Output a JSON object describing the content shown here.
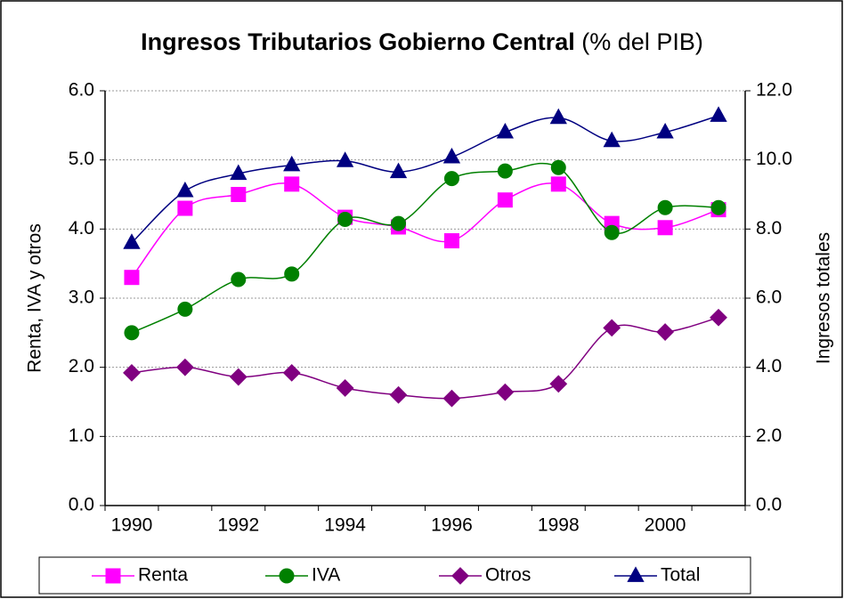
{
  "chart_data": {
    "type": "line",
    "title": "Ingresos Tributarios Gobierno Central",
    "subtitle": "(% del PIB)",
    "y_label": "Renta, IVA y otros",
    "y2_label": "Ingresos totales",
    "categories": [
      "1990",
      null,
      "1992",
      null,
      "1994",
      null,
      "1996",
      null,
      "1998",
      null,
      "2000",
      null
    ],
    "series": [
      {
        "name": "Renta",
        "color": "#ff00ff",
        "marker": "square",
        "values": [
          3.3,
          4.3,
          4.5,
          4.65,
          4.17,
          4.03,
          3.83,
          4.42,
          4.65,
          4.08,
          4.02,
          4.28
        ]
      },
      {
        "name": "IVA",
        "color": "#008000",
        "marker": "circle",
        "values": [
          2.5,
          2.84,
          3.27,
          3.35,
          4.14,
          4.08,
          4.73,
          4.84,
          4.89,
          3.95,
          4.31,
          4.31
        ]
      },
      {
        "name": "Otros",
        "color": "#800080",
        "marker": "diamond",
        "values": [
          1.92,
          2.0,
          1.86,
          1.92,
          1.7,
          1.6,
          1.55,
          1.64,
          1.76,
          2.57,
          2.51,
          2.72
        ]
      },
      {
        "name": "Total",
        "color": "#000080",
        "marker": "triangle",
        "axis": "y2",
        "values": [
          7.6,
          9.1,
          9.6,
          9.85,
          9.97,
          9.65,
          10.08,
          10.8,
          11.22,
          10.55,
          10.8,
          11.28
        ]
      }
    ],
    "ylim": [
      0,
      6
    ],
    "yticks": [
      {
        "value": 0,
        "label": "0.0"
      },
      {
        "value": 1,
        "label": "1.0"
      },
      {
        "value": 2,
        "label": "2.0"
      },
      {
        "value": 3,
        "label": "3.0"
      },
      {
        "value": 4,
        "label": "4.0"
      },
      {
        "value": 5,
        "label": "5.0"
      },
      {
        "value": 6,
        "label": "6.0"
      }
    ],
    "y2lim": [
      0,
      12
    ],
    "y2ticks": [
      {
        "value": 0,
        "label": "0.0"
      },
      {
        "value": 2,
        "label": "2.0"
      },
      {
        "value": 4,
        "label": "4.0"
      },
      {
        "value": 6,
        "label": "6.0"
      },
      {
        "value": 8,
        "label": "8.0"
      },
      {
        "value": 10,
        "label": "10.0"
      },
      {
        "value": 12,
        "label": "12.0"
      }
    ],
    "grid": true,
    "legend": "bottom"
  }
}
